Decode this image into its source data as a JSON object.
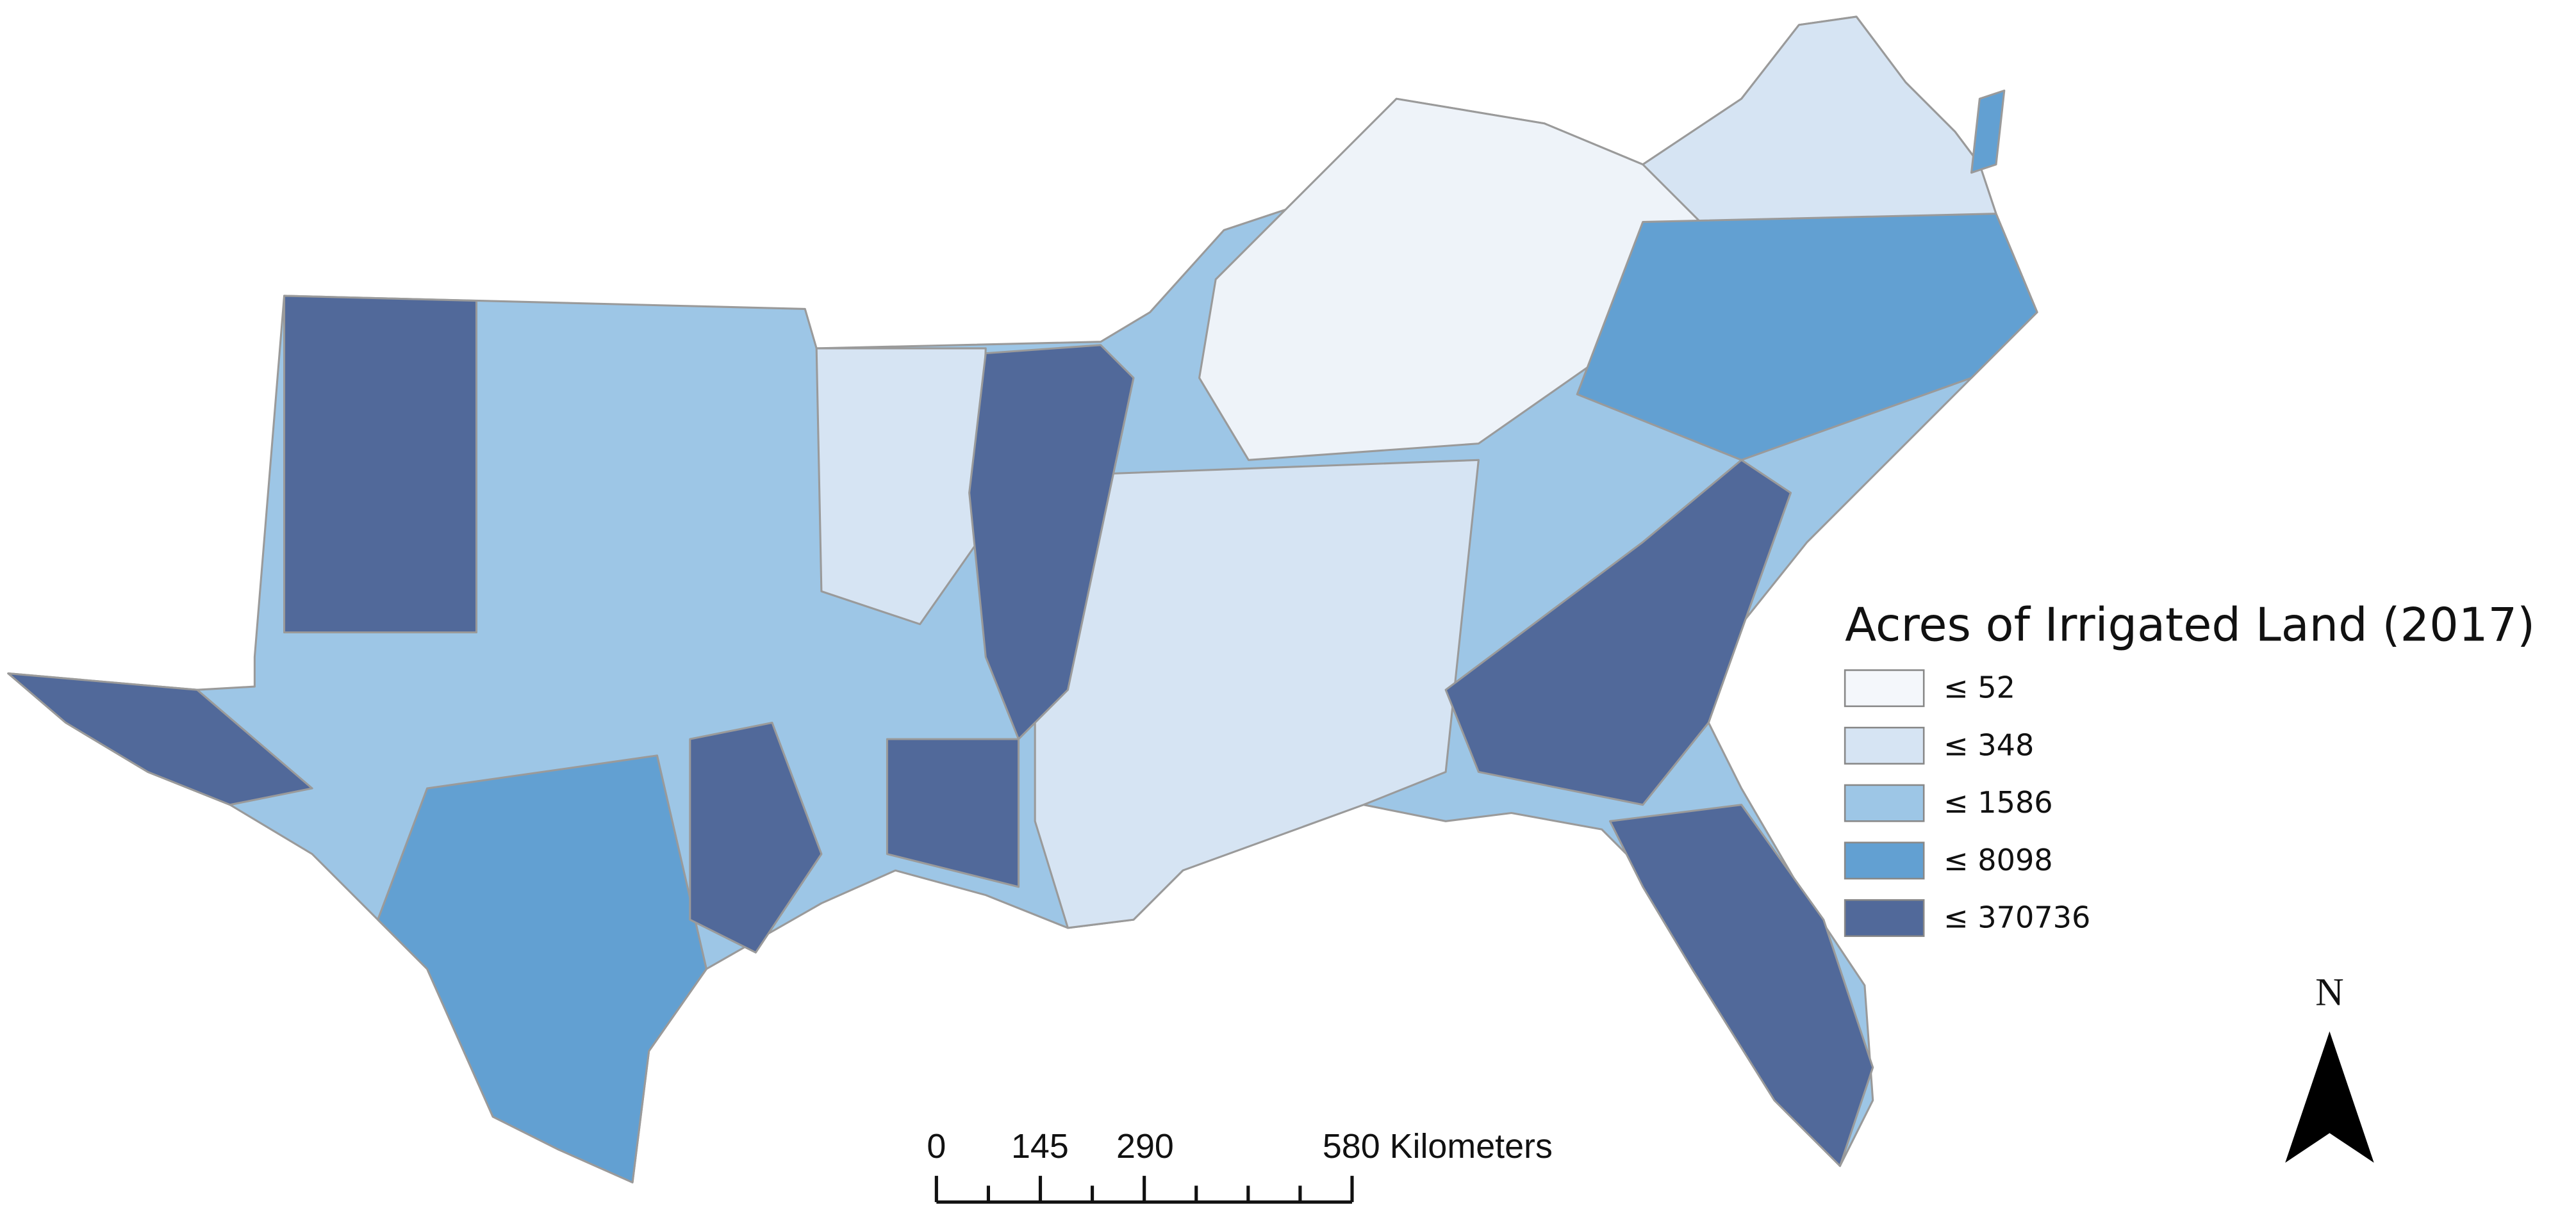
{
  "legend": {
    "title": "Acres of Irrigated Land (2017)",
    "items": [
      {
        "label": "≤ 52",
        "color": "#f4f7fb"
      },
      {
        "label": "≤ 348",
        "color": "#d6e4f3"
      },
      {
        "label": "≤ 1586",
        "color": "#9dc6e6"
      },
      {
        "label": "≤ 8098",
        "color": "#62a0d2"
      },
      {
        "label": "≤ 370736",
        "color": "#51699a"
      }
    ]
  },
  "scale_bar": {
    "labels": [
      "0",
      "145",
      "290",
      "580 Kilometers"
    ]
  },
  "north_arrow": {
    "label": "N"
  }
}
